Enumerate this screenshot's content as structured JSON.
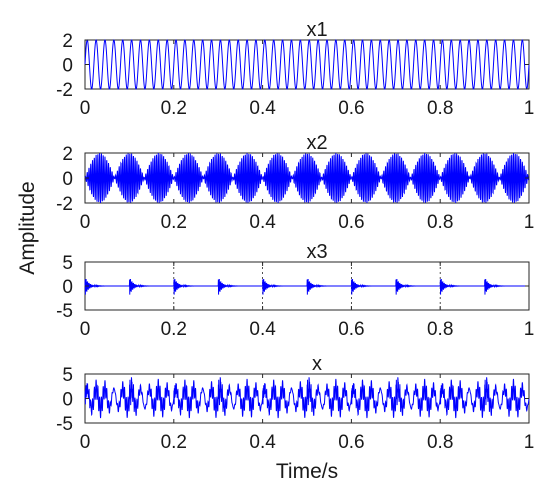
{
  "figure": {
    "ylabel": "Amplitude",
    "xlabel": "Time/s"
  },
  "chart_data": [
    {
      "type": "line",
      "title": "x1",
      "xlim": [
        0,
        1
      ],
      "ylim": [
        -2,
        2
      ],
      "xticks": [
        "0",
        "0.2",
        "0.4",
        "0.6",
        "0.8",
        "1"
      ],
      "yticks": [
        "2",
        "0",
        "-2"
      ],
      "grid": false,
      "series": [
        {
          "color": "#0000ff",
          "description_values": {
            "kind": "sine",
            "amplitude": 2,
            "frequency_hz": 50,
            "x": [
              0,
              1
            ]
          }
        }
      ]
    },
    {
      "type": "line",
      "title": "x2",
      "xlim": [
        0,
        1
      ],
      "ylim": [
        -2,
        2
      ],
      "xticks": [
        "0",
        "0.2",
        "0.4",
        "0.6",
        "0.8",
        "1"
      ],
      "yticks": [
        "2",
        "0",
        "-2"
      ],
      "grid": false,
      "series": [
        {
          "color": "#0000ff",
          "description_values": {
            "kind": "amplitude-modulated",
            "peak_amplitude": 2,
            "carrier_hz": 250,
            "envelope_hz": 15,
            "x": [
              0,
              1
            ]
          }
        }
      ]
    },
    {
      "type": "line",
      "title": "x3",
      "xlim": [
        0,
        1
      ],
      "ylim": [
        -5,
        5
      ],
      "xticks": [
        "0",
        "0.2",
        "0.4",
        "0.6",
        "0.8",
        "1"
      ],
      "yticks": [
        "5",
        "0",
        "-5"
      ],
      "grid": true,
      "series": [
        {
          "color": "#0000ff",
          "description_values": {
            "kind": "periodic-impulses",
            "impulse_times": [
              0,
              0.1,
              0.2,
              0.3,
              0.4,
              0.5,
              0.6,
              0.7,
              0.8,
              0.9
            ],
            "peak_amplitude": 2,
            "decay_s": 0.008,
            "x": [
              0,
              1
            ]
          }
        }
      ]
    },
    {
      "type": "line",
      "title": "x",
      "xlim": [
        0,
        1
      ],
      "ylim": [
        -5,
        5
      ],
      "xticks": [
        "0",
        "0.2",
        "0.4",
        "0.6",
        "0.8",
        "1"
      ],
      "yticks": [
        "5",
        "0",
        "-5"
      ],
      "grid": false,
      "series": [
        {
          "color": "#0000ff",
          "description_values": {
            "kind": "sum",
            "components": [
              "x1",
              "x2",
              "x3"
            ],
            "x": [
              0,
              1
            ]
          }
        }
      ]
    }
  ]
}
